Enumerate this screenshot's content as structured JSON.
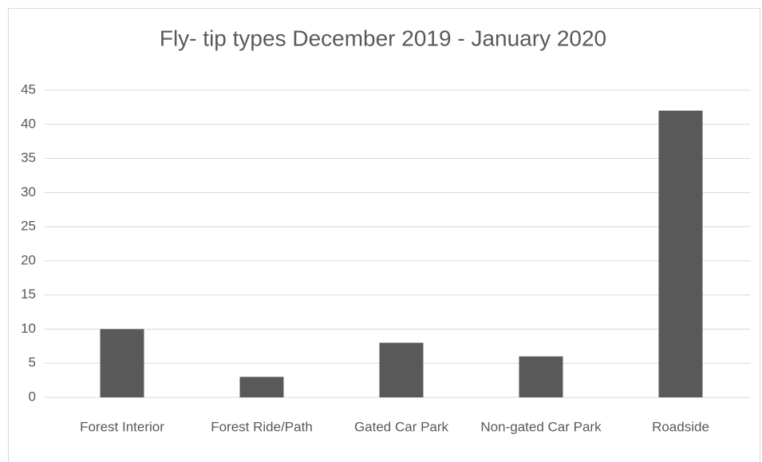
{
  "chart_data": {
    "type": "bar",
    "title": "Fly- tip types December 2019 - January 2020",
    "categories": [
      "Forest Interior",
      "Forest Ride/Path",
      "Gated Car Park",
      "Non-gated Car Park",
      "Roadside"
    ],
    "values": [
      10,
      3,
      8,
      6,
      42
    ],
    "color": "#595959",
    "ylim": [
      0,
      45
    ],
    "yticks": [
      0,
      5,
      10,
      15,
      20,
      25,
      30,
      35,
      40,
      45
    ],
    "grid": true
  }
}
